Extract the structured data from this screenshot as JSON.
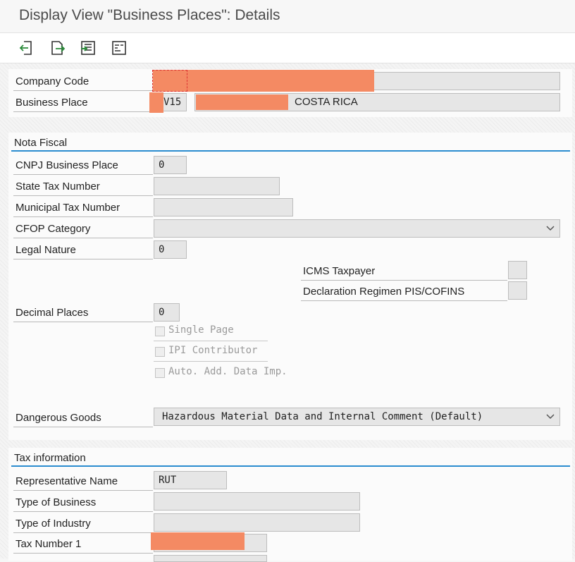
{
  "window": {
    "title": "Display View \"Business Places\": Details"
  },
  "toolbar": {
    "icons": [
      "previous-entry-icon",
      "next-entry-icon",
      "select-icon",
      "display-all-icon"
    ]
  },
  "header": {
    "company_code_label": "Company Code",
    "company_code_value": "",
    "business_place_label": "Business Place",
    "business_place_value": "V15",
    "business_place_desc": "COSTA RICA"
  },
  "nota_fiscal": {
    "section_title": "Nota Fiscal",
    "cnpj_label": "CNPJ Business Place",
    "cnpj_value": "0",
    "state_tax_label": "State Tax Number",
    "state_tax_value": "",
    "municipal_tax_label": "Municipal Tax Number",
    "municipal_tax_value": "",
    "cfop_label": "CFOP Category",
    "cfop_value": "",
    "legal_nature_label": "Legal Nature",
    "legal_nature_value": "0",
    "icms_label": "ICMS Taxpayer",
    "icms_value": "",
    "declaration_label": "Declaration Regimen PIS/COFINS",
    "declaration_value": "",
    "decimal_places_label": "Decimal Places",
    "decimal_places_value": "0",
    "single_page_label": "Single Page",
    "ipi_contributor_label": "IPI Contributor",
    "auto_add_label": "Auto. Add. Data Imp.",
    "dangerous_goods_label": "Dangerous Goods",
    "dangerous_goods_value": "Hazardous Material Data and Internal Comment (Default)"
  },
  "tax_information": {
    "section_title": "Tax information",
    "representative_name_label": "Representative Name",
    "representative_name_value": "RUT",
    "type_of_business_label": "Type of Business",
    "type_of_business_value": "",
    "type_of_industry_label": "Type of Industry",
    "type_of_industry_value": "",
    "tax_number_1_label": "Tax Number 1",
    "tax_number_1_value": ""
  },
  "colors": {
    "accent": "#2b8ccf",
    "redaction": "#f48a63",
    "field_bg": "#e6e6e6"
  }
}
